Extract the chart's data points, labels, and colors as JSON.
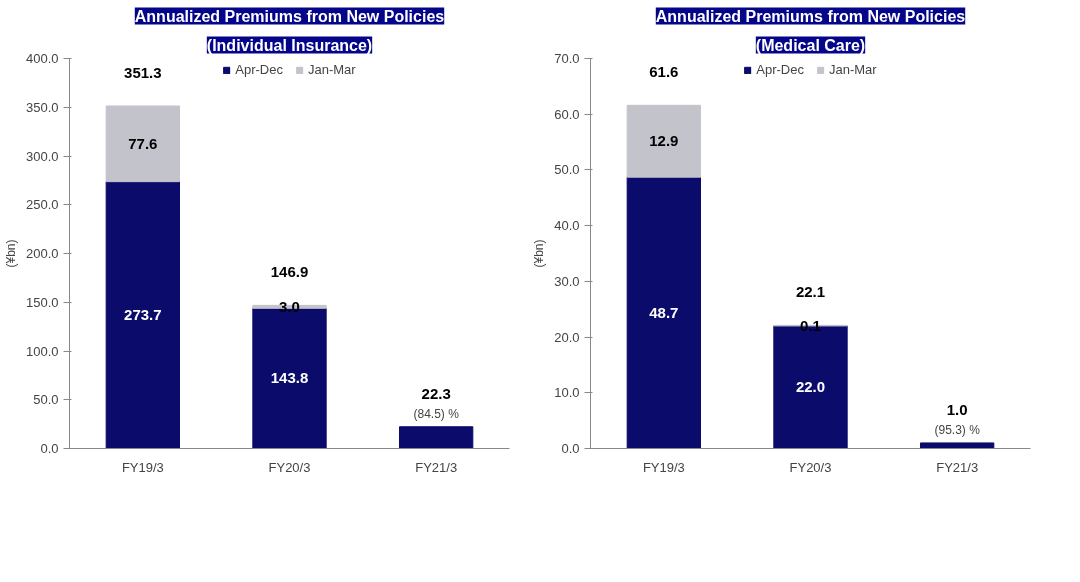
{
  "chart_data": [
    {
      "type": "bar",
      "title": "Annualized Premiums from New Policies",
      "subtitle": "(Individual Insurance)",
      "ylabel": "(¥bn)",
      "categories": [
        "FY19/3",
        "FY20/3",
        "FY21/3"
      ],
      "stacked": true,
      "series": [
        {
          "name": "Apr-Dec",
          "color": "#0b0b6b",
          "values": [
            273.7,
            143.8,
            22.3
          ],
          "value_labels": [
            "273.7",
            "143.8",
            null
          ]
        },
        {
          "name": "Jan-Mar",
          "color": "#c3c3cb",
          "values": [
            77.6,
            3.0,
            null
          ],
          "value_labels": [
            "77.6",
            "3.0",
            null
          ]
        }
      ],
      "totals": [
        "351.3",
        "146.9",
        "22.3"
      ],
      "annotations": [
        {
          "text": "(84.5) %",
          "x": "FY21/3",
          "y": 22.3
        }
      ],
      "ylim": [
        0,
        400
      ],
      "yticks": [
        {
          "value": 0,
          "label": "0.0"
        },
        {
          "value": 50,
          "label": "50.0"
        },
        {
          "value": 100,
          "label": "100.0"
        },
        {
          "value": 150,
          "label": "150.0"
        },
        {
          "value": 200,
          "label": "200.0"
        },
        {
          "value": 250,
          "label": "250.0"
        },
        {
          "value": 300,
          "label": "300.0"
        },
        {
          "value": 350,
          "label": "350.0"
        },
        {
          "value": 400,
          "label": "400.0"
        }
      ],
      "grid": false,
      "legend": "top"
    },
    {
      "type": "bar",
      "title": "Annualized Premiums from New Policies",
      "subtitle": "(Medical Care)",
      "ylabel": "(¥bn)",
      "categories": [
        "FY19/3",
        "FY20/3",
        "FY21/3"
      ],
      "stacked": true,
      "series": [
        {
          "name": "Apr-Dec",
          "color": "#0b0b6b",
          "values": [
            48.7,
            22.0,
            1.0
          ],
          "value_labels": [
            "48.7",
            "22.0",
            null
          ]
        },
        {
          "name": "Jan-Mar",
          "color": "#c3c3cb",
          "values": [
            12.9,
            0.1,
            null
          ],
          "value_labels": [
            "12.9",
            "0.1",
            null
          ]
        }
      ],
      "totals": [
        "61.6",
        "22.1",
        "1.0"
      ],
      "annotations": [
        {
          "text": "(95.3) %",
          "x": "FY21/3",
          "y": 1.0
        }
      ],
      "ylim": [
        0,
        70
      ],
      "yticks": [
        {
          "value": 0,
          "label": "0.0"
        },
        {
          "value": 10,
          "label": "10.0"
        },
        {
          "value": 20,
          "label": "20.0"
        },
        {
          "value": 30,
          "label": "30.0"
        },
        {
          "value": 40,
          "label": "40.0"
        },
        {
          "value": 50,
          "label": "50.0"
        },
        {
          "value": 60,
          "label": "60.0"
        },
        {
          "value": 70,
          "label": "70.0"
        }
      ],
      "grid": false,
      "legend": "top"
    }
  ]
}
